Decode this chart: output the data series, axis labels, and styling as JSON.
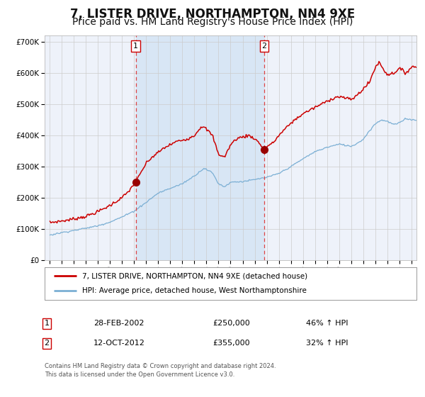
{
  "title": "7, LISTER DRIVE, NORTHAMPTON, NN4 9XE",
  "subtitle": "Price paid vs. HM Land Registry's House Price Index (HPI)",
  "title_fontsize": 12,
  "subtitle_fontsize": 10,
  "background_color": "#ffffff",
  "plot_bg_color": "#eef2fa",
  "grid_color": "#cccccc",
  "red_line_color": "#cc0000",
  "blue_line_color": "#7bafd4",
  "vline_color": "#dd4444",
  "shade_color": "#d8e6f5",
  "marker_color": "#990000",
  "sale1_date_num": 2002.15,
  "sale1_price": 250000,
  "sale1_label": "28-FEB-2002",
  "sale1_pct": "46% ↑ HPI",
  "sale2_date_num": 2012.78,
  "sale2_price": 355000,
  "sale2_label": "12-OCT-2012",
  "sale2_pct": "32% ↑ HPI",
  "ylim": [
    0,
    720000
  ],
  "xlim_start": 1994.6,
  "xlim_end": 2025.4,
  "legend_line1": "7, LISTER DRIVE, NORTHAMPTON, NN4 9XE (detached house)",
  "legend_line2": "HPI: Average price, detached house, West Northamptonshire",
  "footer1": "Contains HM Land Registry data © Crown copyright and database right 2024.",
  "footer2": "This data is licensed under the Open Government Licence v3.0."
}
